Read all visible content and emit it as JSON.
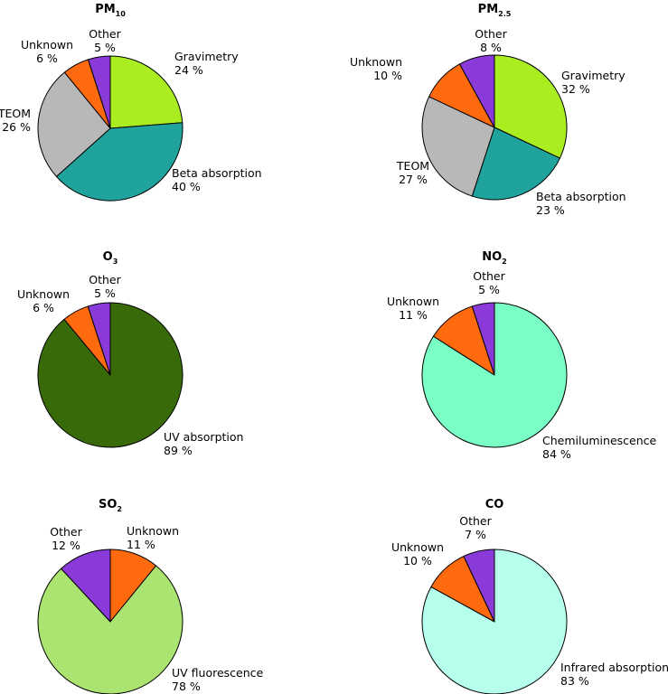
{
  "chart_data": [
    {
      "type": "pie",
      "title": "PM",
      "title_subscript": "10",
      "slices": [
        {
          "label": "Gravimetry",
          "value": 24,
          "value_text": "24 %",
          "color": "#aaee22"
        },
        {
          "label": "Beta absorption",
          "value": 40,
          "value_text": "40 %",
          "color": "#1fa39c"
        },
        {
          "label": "TEOM",
          "value": 26,
          "value_text": "26 %",
          "color": "#b8b8b8"
        },
        {
          "label": "Unknown",
          "value": 6,
          "value_text": "6 %",
          "color": "#ff6a0e"
        },
        {
          "label": "Other",
          "value": 5,
          "value_text": "5 %",
          "color": "#8a3ad8"
        }
      ]
    },
    {
      "type": "pie",
      "title": "PM",
      "title_subscript": "2.5",
      "slices": [
        {
          "label": "Gravimetry",
          "value": 32,
          "value_text": "32 %",
          "color": "#aaee22"
        },
        {
          "label": "Beta absorption",
          "value": 23,
          "value_text": "23 %",
          "color": "#1fa39c"
        },
        {
          "label": "TEOM",
          "value": 27,
          "value_text": "27 %",
          "color": "#b8b8b8"
        },
        {
          "label": "Unknown",
          "value": 10,
          "value_text": "10 %",
          "color": "#ff6a0e"
        },
        {
          "label": "Other",
          "value": 8,
          "value_text": "8 %",
          "color": "#8a3ad8"
        }
      ]
    },
    {
      "type": "pie",
      "title": "O",
      "title_subscript": "3",
      "slices": [
        {
          "label": "UV absorption",
          "value": 89,
          "value_text": "89 %",
          "color": "#386a0a"
        },
        {
          "label": "Unknown",
          "value": 6,
          "value_text": "6 %",
          "color": "#ff6a0e"
        },
        {
          "label": "Other",
          "value": 5,
          "value_text": "5 %",
          "color": "#8a3ad8"
        }
      ]
    },
    {
      "type": "pie",
      "title": "NO",
      "title_subscript": "2",
      "slices": [
        {
          "label": "Chemiluminescence",
          "value": 84,
          "value_text": "84 %",
          "color": "#7affc4"
        },
        {
          "label": "Unknown",
          "value": 11,
          "value_text": "11 %",
          "color": "#ff6a0e"
        },
        {
          "label": "Other",
          "value": 5,
          "value_text": "5 %",
          "color": "#8a3ad8"
        }
      ]
    },
    {
      "type": "pie",
      "title": "SO",
      "title_subscript": "2",
      "slices": [
        {
          "label": "Unknown",
          "value": 11,
          "value_text": "11 %",
          "color": "#ff6a0e"
        },
        {
          "label": "UV fluorescence",
          "value": 78,
          "value_text": "78 %",
          "color": "#abe470"
        },
        {
          "label": "Other",
          "value": 12,
          "value_text": "12 %",
          "color": "#8a3ad8"
        }
      ]
    },
    {
      "type": "pie",
      "title": "CO",
      "title_subscript": "",
      "slices": [
        {
          "label": "Infrared absorption",
          "value": 83,
          "value_text": "83 %",
          "color": "#b5ffec"
        },
        {
          "label": "Unknown",
          "value": 10,
          "value_text": "10 %",
          "color": "#ff6a0e"
        },
        {
          "label": "Other",
          "value": 7,
          "value_text": "7 %",
          "color": "#8a3ad8"
        }
      ]
    }
  ]
}
